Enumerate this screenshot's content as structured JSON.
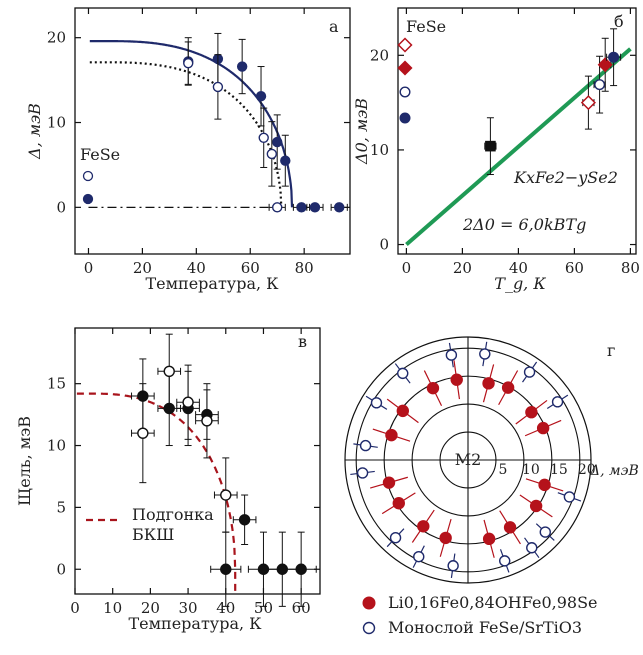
{
  "colors": {
    "navy": "#1f2a6b",
    "red": "#b5121b",
    "green": "#1f9a55",
    "black": "#111111",
    "darkred": "#a8141c"
  },
  "chart_data": [
    {
      "panel": "а",
      "type": "scatter",
      "panel_label": "а",
      "xlabel": "Температура, К",
      "ylabel": "Δ, мэВ",
      "xlim": [
        -5,
        97
      ],
      "ylim": [
        -5.5,
        23.5
      ],
      "xticks": [
        "0",
        "20",
        "40",
        "60",
        "80"
      ],
      "yticks": [
        "0",
        "10",
        "20"
      ],
      "legend_title": "FeSe",
      "series": [
        {
          "marker": "filled-circle",
          "color": "navy",
          "points": [
            [
              37,
              17.2,
              2.8
            ],
            [
              48,
              17.5,
              3.0
            ],
            [
              57,
              16.6,
              3.2
            ],
            [
              64,
              13.1,
              3.5
            ],
            [
              70,
              7.7,
              3.2
            ],
            [
              73,
              5.5,
              3.0
            ],
            [
              79,
              0,
              0
            ],
            [
              84,
              0,
              0
            ],
            [
              93,
              0,
              0
            ]
          ]
        },
        {
          "marker": "open-circle",
          "color": "navy",
          "points": [
            [
              37,
              17.0,
              2.5
            ],
            [
              48,
              14.2,
              3.8
            ],
            [
              65,
              8.2,
              3.5
            ],
            [
              68,
              6.3,
              3.8
            ],
            [
              70,
              0,
              0
            ]
          ]
        }
      ],
      "curves": [
        {
          "style": "solid",
          "color": "navy",
          "delta0": 19.6,
          "Tc": 75.5
        },
        {
          "style": "dotted",
          "color": "black",
          "delta0": 17.1,
          "Tc": 71.5
        },
        {
          "style": "dash-dot",
          "color": "black",
          "y": 0
        }
      ]
    },
    {
      "panel": "б",
      "type": "scatter",
      "panel_label": "б",
      "xlabel": "T_g, К",
      "ylabel": "Δ0, мэВ",
      "xlim": [
        -3,
        82
      ],
      "ylim": [
        -1,
        25
      ],
      "xticks": [
        "0",
        "20",
        "40",
        "60",
        "80"
      ],
      "yticks": [
        "0",
        "10",
        "20"
      ],
      "legend_title": "FeSe",
      "fit_label": "2Δ0 = 6,0kBTg",
      "compound_label": "KxFe2−ySe2",
      "fit_slope": 0.2585,
      "points": [
        {
          "x": 30,
          "y": 10.4,
          "xerr": 2,
          "yerr": 3.0,
          "marker": "filled-square",
          "color": "black"
        },
        {
          "x": 65,
          "y": 15.0,
          "xerr": 2,
          "yerr": 2.8,
          "marker": "open-diamond",
          "color": "red"
        },
        {
          "x": 69,
          "y": 16.9,
          "xerr": 2,
          "yerr": 3.0,
          "marker": "open-circle",
          "color": "navy"
        },
        {
          "x": 71,
          "y": 19.0,
          "xerr": 2,
          "yerr": 2.8,
          "marker": "filled-diamond",
          "color": "red"
        },
        {
          "x": 74,
          "y": 19.8,
          "xerr": 2.5,
          "yerr": 3.0,
          "marker": "filled-circle",
          "color": "navy"
        }
      ],
      "legend_markers": [
        {
          "marker": "open-diamond",
          "color": "red"
        },
        {
          "marker": "filled-diamond",
          "color": "red"
        },
        {
          "marker": "open-circle",
          "color": "navy"
        },
        {
          "marker": "filled-circle",
          "color": "navy"
        }
      ]
    },
    {
      "panel": "в",
      "type": "scatter",
      "panel_label": "в",
      "xlabel": "Температура, К",
      "ylabel": "Щель, мэВ",
      "xlim": [
        0,
        65
      ],
      "ylim": [
        -2,
        19.5
      ],
      "xticks": [
        "0",
        "10",
        "20",
        "30",
        "40",
        "50",
        "60"
      ],
      "yticks": [
        "0",
        "5",
        "10",
        "15"
      ],
      "fit_label_1": "Подгонка",
      "fit_label_2": "БКШ",
      "fit_curve": {
        "style": "dashed",
        "color": "darkred",
        "delta0": 14.2,
        "Tc": 42.5
      },
      "series": [
        {
          "marker": "filled-circle",
          "color": "black",
          "points": [
            [
              18,
              14,
              3,
              3
            ],
            [
              25,
              13,
              3,
              3
            ],
            [
              30,
              13,
              3,
              3
            ],
            [
              35,
              12.5,
              3,
              2
            ],
            [
              45,
              4,
              3,
              2
            ],
            [
              40,
              0,
              4,
              3
            ],
            [
              50,
              0,
              4,
              3
            ],
            [
              55,
              0,
              4,
              3
            ],
            [
              60,
              0,
              4,
              3
            ]
          ]
        },
        {
          "marker": "open-circle",
          "color": "black",
          "points": [
            [
              18,
              11,
              3,
              4
            ],
            [
              25,
              16,
              3,
              3
            ],
            [
              30,
              13.5,
              3,
              3
            ],
            [
              35,
              12,
              3,
              3
            ],
            [
              40,
              6,
              3,
              3
            ]
          ]
        }
      ]
    },
    {
      "panel": "г",
      "type": "scatter",
      "panel_label": "г",
      "center_label": "M2",
      "radial_label": "Δ, мэВ",
      "radial_ticks": [
        "5",
        "10",
        "15",
        "20"
      ],
      "rmax": 22,
      "rings": [
        5,
        10,
        15,
        20
      ],
      "legend": [
        {
          "label": "Li0,16Fe0,84OHFe0,98Se",
          "marker": "filled-circle",
          "color": "red"
        },
        {
          "label": "Монослой FeSe/SrTiO3",
          "marker": "open-circle",
          "color": "navy"
        }
      ],
      "red_points": [
        [
          75,
          14.2
        ],
        [
          61,
          14.8
        ],
        [
          37,
          14.2
        ],
        [
          23,
          14.6
        ],
        [
          -18,
          14.4
        ],
        [
          -34,
          14.7
        ],
        [
          -58,
          14.2
        ],
        [
          -75,
          14.6
        ],
        [
          -106,
          14.5
        ],
        [
          -124,
          14.3
        ],
        [
          -148,
          14.6
        ],
        [
          -164,
          14.7
        ],
        [
          162,
          14.4
        ],
        [
          143,
          14.6
        ],
        [
          116,
          14.3
        ],
        [
          98,
          14.5
        ]
      ],
      "red_err": 3.5,
      "navy_points": [
        [
          81,
          19.2
        ],
        [
          99,
          19.0
        ],
        [
          127,
          19.4
        ],
        [
          148,
          19.3
        ],
        [
          -133,
          19.0
        ],
        [
          -117,
          19.4
        ],
        [
          -98,
          19.1
        ],
        [
          -70,
          19.2
        ],
        [
          -54,
          19.4
        ],
        [
          -43,
          18.9
        ],
        [
          -20,
          19.3
        ],
        [
          33,
          19.1
        ],
        [
          55,
          19.2
        ],
        [
          172,
          18.5
        ],
        [
          -173,
          19.0
        ]
      ],
      "navy_err": 2.2
    }
  ]
}
